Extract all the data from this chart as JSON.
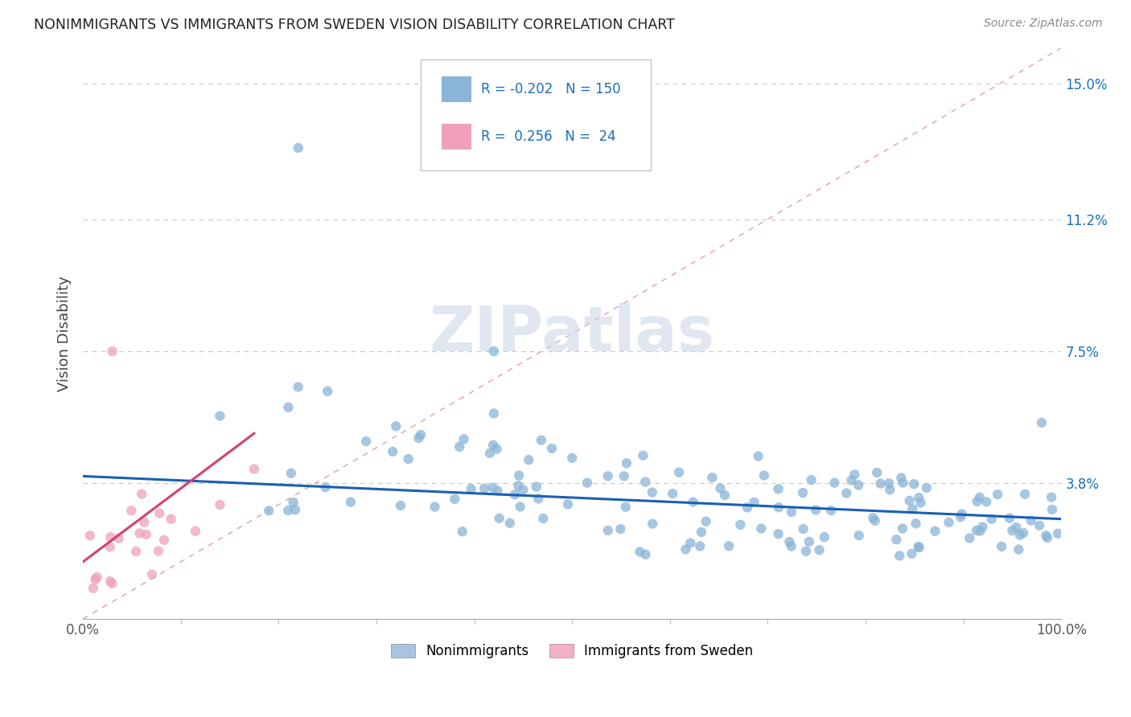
{
  "title": "NONIMMIGRANTS VS IMMIGRANTS FROM SWEDEN VISION DISABILITY CORRELATION CHART",
  "source": "Source: ZipAtlas.com",
  "ylabel": "Vision Disability",
  "x_tick_labels": [
    "0.0%",
    "100.0%"
  ],
  "y_tick_values": [
    0.038,
    0.075,
    0.112,
    0.15
  ],
  "y_tick_labels": [
    "3.8%",
    "7.5%",
    "11.2%",
    "15.0%"
  ],
  "xlim": [
    0.0,
    1.0
  ],
  "ylim": [
    0.0,
    0.16
  ],
  "legend_labels_bottom": [
    "Nonimmigrants",
    "Immigrants from Sweden"
  ],
  "legend_colors_bottom": [
    "#a8c4e0",
    "#f4b0c4"
  ],
  "r_nonimmigrants": -0.202,
  "n_nonimmigrants": 150,
  "r_immigrants": 0.256,
  "n_immigrants": 24,
  "scatter_color_blue": "#8ab4d8",
  "scatter_color_pink": "#f0a0bc",
  "line_color_blue": "#1a5fb4",
  "line_color_pink": "#d44070",
  "ref_line_color": "#e0a0a8",
  "grid_color": "#c8c8c8",
  "title_color": "#222222",
  "stats_color": "#1a6fba",
  "watermark_text": "ZIPatlas",
  "background_color": "#ffffff",
  "blue_line_y0": 0.04,
  "blue_line_y1": 0.028,
  "pink_line_x0": 0.0,
  "pink_line_y0": 0.016,
  "pink_line_x1": 0.175,
  "pink_line_y1": 0.052
}
